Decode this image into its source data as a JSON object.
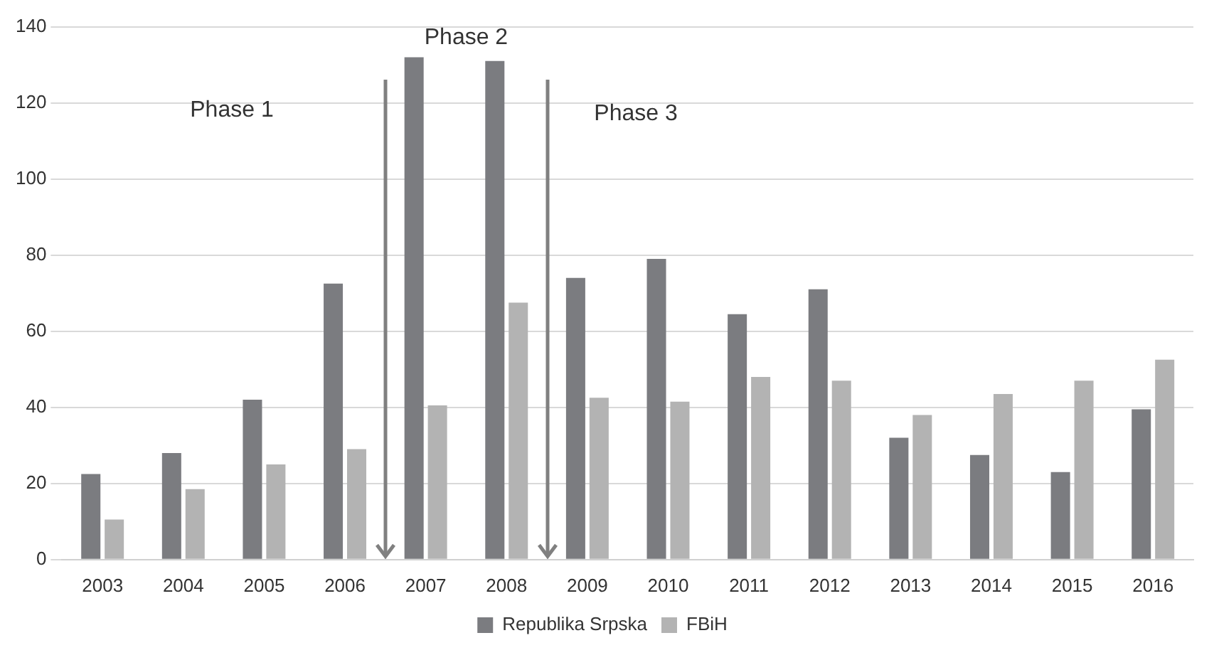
{
  "chart_data": {
    "type": "bar",
    "categories": [
      "2003",
      "2004",
      "2005",
      "2006",
      "2007",
      "2008",
      "2009",
      "2010",
      "2011",
      "2012",
      "2013",
      "2014",
      "2015",
      "2016"
    ],
    "series": [
      {
        "name": "Republika Srpska",
        "color": "#7b7c80",
        "values": [
          22.5,
          28,
          42,
          72.5,
          132,
          131,
          74,
          79,
          64.5,
          71,
          32,
          27.5,
          23,
          39.5
        ]
      },
      {
        "name": "FBiH",
        "color": "#b3b3b3",
        "values": [
          10.5,
          18.5,
          25,
          29,
          40.5,
          67.5,
          42.5,
          41.5,
          48,
          47,
          38,
          43.5,
          47,
          52.5
        ]
      }
    ],
    "ylim": [
      0,
      140
    ],
    "yticks": [
      0,
      20,
      40,
      60,
      80,
      100,
      120,
      140
    ],
    "grid": "y",
    "legend": "bottom",
    "annotations": [
      "Phase 1",
      "Phase 2",
      "Phase 3"
    ]
  }
}
